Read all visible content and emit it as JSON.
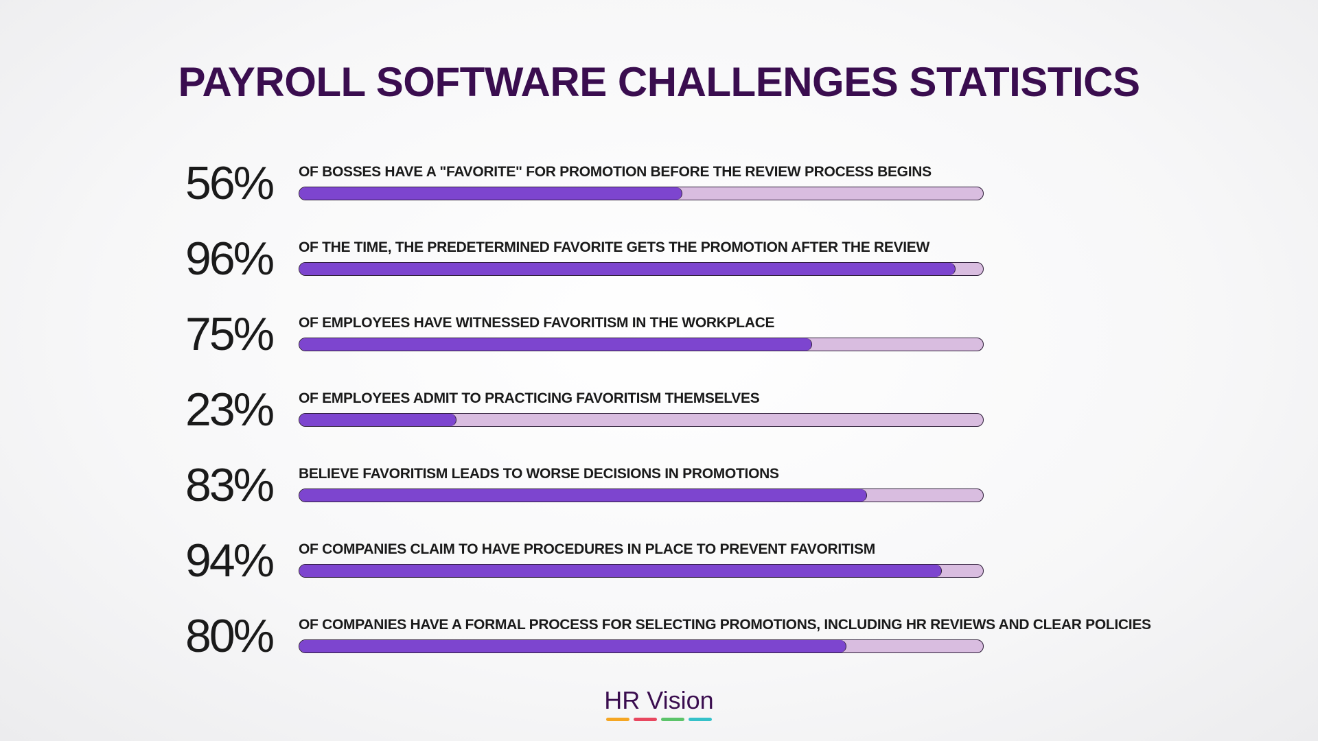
{
  "title": "PAYROLL SOFTWARE CHALLENGES STATISTICS",
  "colors": {
    "title": "#3a0d4f",
    "bar_fill": "#7d45cf",
    "bar_track": "#d9bde0",
    "bar_border": "#2a1a35"
  },
  "chart_data": {
    "type": "bar",
    "orientation": "horizontal",
    "xlim": [
      0,
      100
    ],
    "grid": false,
    "categories": [
      "OF BOSSES HAVE A \"FAVORITE\" FOR PROMOTION BEFORE THE REVIEW PROCESS BEGINS",
      "OF THE TIME, THE PREDETERMINED FAVORITE GETS THE PROMOTION AFTER THE REVIEW",
      "OF EMPLOYEES HAVE WITNESSED FAVORITISM IN THE WORKPLACE",
      "OF EMPLOYEES ADMIT TO PRACTICING FAVORITISM THEMSELVES",
      "BELIEVE FAVORITISM LEADS TO WORSE DECISIONS IN PROMOTIONS",
      "OF COMPANIES CLAIM TO HAVE PROCEDURES IN PLACE TO PREVENT FAVORITISM",
      "OF COMPANIES HAVE A FORMAL PROCESS FOR SELECTING PROMOTIONS, INCLUDING HR REVIEWS AND CLEAR POLICIES"
    ],
    "values": [
      56,
      96,
      75,
      23,
      83,
      94,
      80
    ],
    "data_labels": [
      "56%",
      "96%",
      "75%",
      "23%",
      "83%",
      "94%",
      "80%"
    ]
  },
  "logo": {
    "text": "HR Vision",
    "stripe_colors": [
      "#f5a623",
      "#e8475f",
      "#5cc46a",
      "#35c1c9"
    ]
  }
}
